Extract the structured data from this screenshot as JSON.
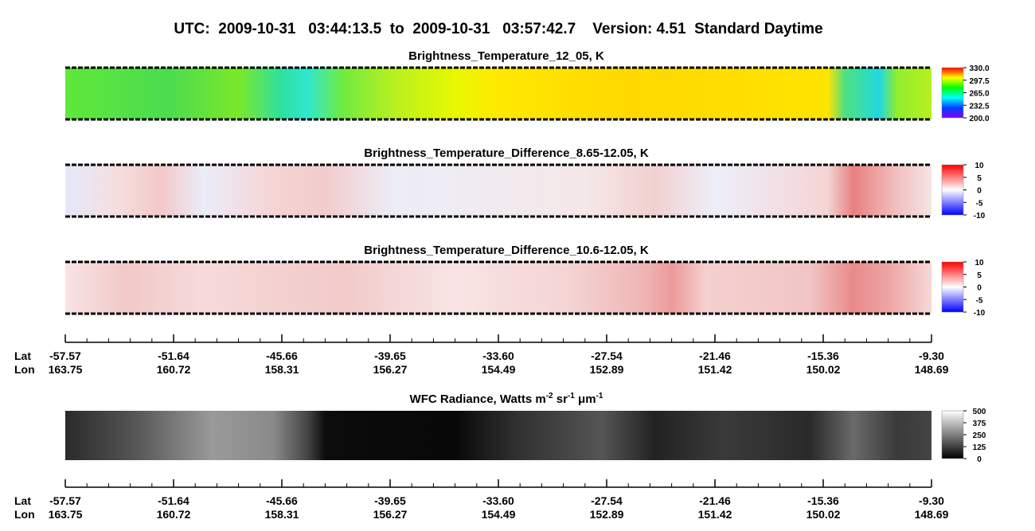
{
  "title": "UTC:  2009-10-31   03:44:13.5  to  2009-10-31   03:57:42.7    Version: 4.51  Standard Daytime",
  "chart_data": [
    {
      "type": "heatmap",
      "title": "Brightness_Temperature_12_05, K",
      "colormap": [
        "#8000ff",
        "#0040ff",
        "#00ffff",
        "#00ff00",
        "#ffff00",
        "#ff0000"
      ],
      "clim": [
        200,
        330
      ],
      "cticks": [
        {
          "value": 200,
          "label": "200.0"
        },
        232.5,
        {
          "value": 265,
          "label": "265.0"
        },
        297.5,
        {
          "value": 330,
          "label": "330.0"
        }
      ]
    },
    {
      "type": "heatmap",
      "title": "Brightness_Temperature_Difference_8.65-12.05, K",
      "colormap": [
        "#0000ff",
        "#ffffff",
        "#ff0000"
      ],
      "clim": [
        -10,
        10
      ],
      "cticks": [
        -10,
        -5,
        0,
        5,
        10
      ]
    },
    {
      "type": "heatmap",
      "title": "Brightness_Temperature_Difference_10.6-12.05, K",
      "colormap": [
        "#0000ff",
        "#ffffff",
        "#ff0000"
      ],
      "clim": [
        -10,
        10
      ],
      "cticks": [
        -10,
        -5,
        0,
        5,
        10
      ]
    },
    {
      "type": "heatmap",
      "title_segments": [
        "WFC Radiance, Watts m",
        "-2",
        " sr",
        "-1",
        " μm",
        "-1"
      ],
      "colormap": [
        "#000000",
        "#ffffff"
      ],
      "clim": [
        0,
        500
      ],
      "cticks": [
        0,
        125,
        250,
        375,
        500
      ]
    }
  ],
  "axes": [
    {
      "row_labels": [
        "Lat",
        "Lon"
      ],
      "lat": [
        "-57.57",
        "-51.64",
        "-45.66",
        "-39.65",
        "-33.60",
        "-27.54",
        "-21.46",
        "-15.36",
        "-9.30"
      ],
      "lon": [
        "163.75",
        "160.72",
        "158.31",
        "156.27",
        "154.49",
        "152.89",
        "151.42",
        "150.02",
        "148.69"
      ]
    },
    {
      "row_labels": [
        "Lat",
        "Lon"
      ],
      "lat": [
        "-57.57",
        "-51.64",
        "-45.66",
        "-39.65",
        "-33.60",
        "-27.54",
        "-21.46",
        "-15.36",
        "-9.30"
      ],
      "lon": [
        "163.75",
        "160.72",
        "158.31",
        "156.27",
        "154.49",
        "152.89",
        "151.42",
        "150.02",
        "148.69"
      ]
    }
  ]
}
